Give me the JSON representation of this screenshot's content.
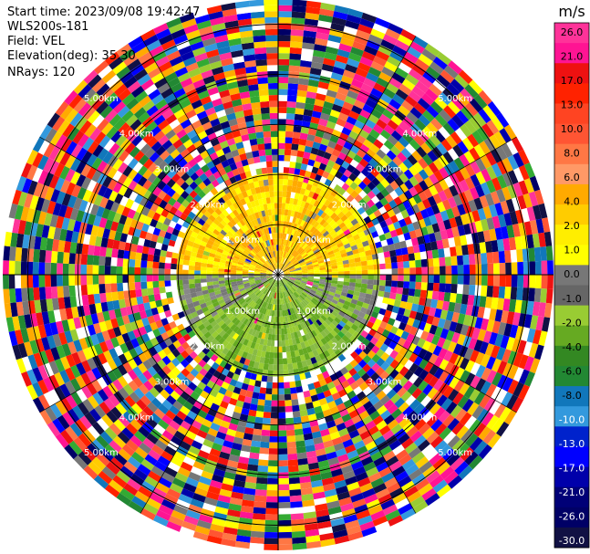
{
  "info": {
    "start_time": "Start time: 2023/09/08 19:42:47",
    "instrument": "WLS200s-181",
    "field": "Field: VEL",
    "elevation": "Elevation(deg): 35.30",
    "nrays": "NRays: 120"
  },
  "chart_data": {
    "type": "heatmap",
    "subtype": "polar-ppi",
    "field": "VEL",
    "nrays": 120,
    "range_rings_km": [
      1.0,
      2.0,
      3.0,
      4.0,
      5.0
    ],
    "range_ring_label": "km",
    "inner_ring_labels": [
      "1.00km",
      "1.00km",
      "1.00km",
      "1.00km"
    ],
    "ring_labels": {
      "r1": "1.00km",
      "r2": "2.00km",
      "r3": "3.00km",
      "r4": "4.00km",
      "r5": "5.00km"
    },
    "colorbar": {
      "unit": "m/s",
      "ticks": [
        "26.0",
        "21.0",
        "17.0",
        "13.0",
        "10.0",
        "8.0",
        "6.0",
        "4.0",
        "2.0",
        "1.0",
        "0.0",
        "-1.0",
        "-2.0",
        "-4.0",
        "-6.0",
        "-8.0",
        "-10.0",
        "-13.0",
        "-17.0",
        "-21.0",
        "-26.0",
        "-30.0"
      ],
      "colors": [
        "#ff3399",
        "#ff1493",
        "#ee1111",
        "#ff2200",
        "#ff4422",
        "#ff5533",
        "#ff7744",
        "#ff9966",
        "#ffaa00",
        "#ffcc00",
        "#ffee00",
        "#ffff00",
        "#777777",
        "#666666",
        "#99cc33",
        "#66aa22",
        "#338822",
        "#228833",
        "#1177bb",
        "#3399dd",
        "#0022cc",
        "#0000ff",
        "#0000aa",
        "#000077",
        "#000066",
        "#111144"
      ]
    },
    "palette": {
      "near_positive": [
        "#ffff00",
        "#ffee00",
        "#ffcc00",
        "#ffaa00"
      ],
      "near_negative": [
        "#99cc33",
        "#66aa22",
        "#88bb44"
      ],
      "near_zero": [
        "#777777",
        "#888888"
      ],
      "noise": [
        "#ff1493",
        "#ff3399",
        "#0000ff",
        "#0000aa",
        "#000066",
        "#ffff00",
        "#ffaa00",
        "#33aa33",
        "#228833",
        "#ff2200",
        "#ee1111",
        "#1177bb",
        "#3399dd",
        "#99cc33",
        "#ff7744",
        "#777777",
        "#ffffff",
        "#ff5533",
        "#ffcc00",
        "#111144"
      ]
    }
  }
}
